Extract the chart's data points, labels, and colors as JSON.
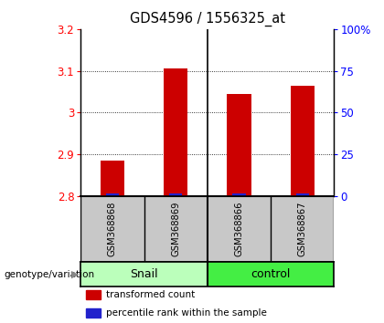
{
  "title": "GDS4596 / 1556325_at",
  "samples": [
    "GSM368868",
    "GSM368869",
    "GSM368866",
    "GSM368867"
  ],
  "group_labels": [
    "Snail",
    "control"
  ],
  "red_values": [
    2.885,
    3.105,
    3.045,
    3.065
  ],
  "ymin": 2.8,
  "ymax": 3.2,
  "yticks": [
    2.8,
    2.9,
    3.0,
    3.1,
    3.2
  ],
  "ytick_labels": [
    "2.8",
    "2.9",
    "3",
    "3.1",
    "3.2"
  ],
  "y2ticks": [
    0,
    25,
    50,
    75,
    100
  ],
  "y2tick_labels": [
    "0",
    "25",
    "50",
    "75",
    "100%"
  ],
  "bar_color_red": "#CC0000",
  "bar_color_blue": "#2222CC",
  "bg_color": "#FFFFFF",
  "snail_color": "#BBFFBB",
  "control_color": "#44EE44",
  "sample_bg": "#C8C8C8",
  "label_fontsize": 8.5,
  "title_fontsize": 10.5,
  "legend_red": "transformed count",
  "legend_blue": "percentile rank within the sample",
  "genotype_label": "genotype/variation"
}
